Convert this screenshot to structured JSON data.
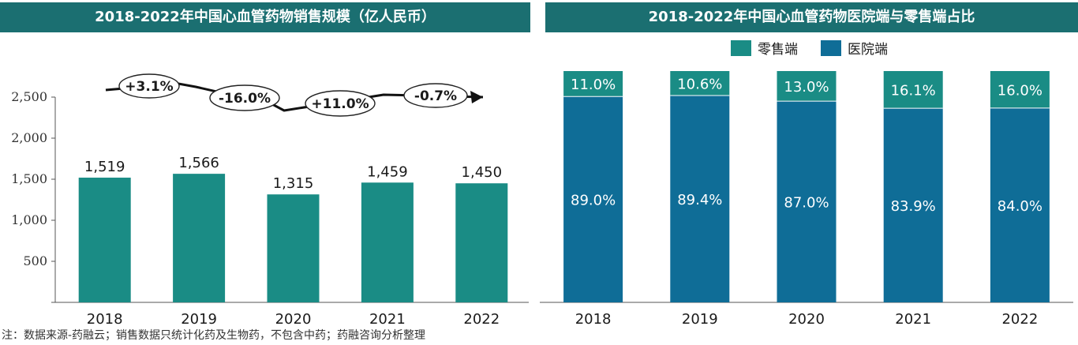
{
  "left_panel": {
    "title": "2018-2022年中国心血管药物销售规模（亿人民币）"
  },
  "right_panel": {
    "title": "2018-2022年中国心血管药物医院端与零售端占比"
  },
  "footnote": "注：数据来源-药融云；销售数据只统计化药及生物药，不包含中药；药融咨询分析整理",
  "colors": {
    "header": "#1b6f71",
    "bar_left": "#1a8c85",
    "retail": "#1a8c85",
    "hospital": "#0f6d97"
  },
  "chart_data": [
    {
      "type": "bar",
      "title": "2018-2022年中国心血管药物销售规模（亿人民币）",
      "categories": [
        "2018",
        "2019",
        "2020",
        "2021",
        "2022"
      ],
      "values": [
        1519,
        1566,
        1315,
        1459,
        1450
      ],
      "value_labels": [
        "1,519",
        "1,566",
        "1,315",
        "1,459",
        "1,450"
      ],
      "yticks": [
        0,
        500,
        1000,
        1500,
        2000,
        2500
      ],
      "ytick_labels": [
        "",
        "500",
        "1,000",
        "1,500",
        "2,000",
        "2,500"
      ],
      "ylim": [
        0,
        2500
      ],
      "growth_labels": [
        "+3.1%",
        "-16.0%",
        "+11.0%",
        "-0.7%"
      ],
      "grid": false
    },
    {
      "type": "bar",
      "stacked": true,
      "title": "2018-2022年中国心血管药物医院端与零售端占比",
      "categories": [
        "2018",
        "2019",
        "2020",
        "2021",
        "2022"
      ],
      "legend_position": "top",
      "series": [
        {
          "name": "零售端",
          "values": [
            11.0,
            10.6,
            13.0,
            16.1,
            16.0
          ],
          "labels": [
            "11.0%",
            "10.6%",
            "13.0%",
            "16.1%",
            "16.0%"
          ]
        },
        {
          "name": "医院端",
          "values": [
            89.0,
            89.4,
            87.0,
            83.9,
            84.0
          ],
          "labels": [
            "89.0%",
            "89.4%",
            "87.0%",
            "83.9%",
            "84.0%"
          ]
        }
      ]
    }
  ]
}
